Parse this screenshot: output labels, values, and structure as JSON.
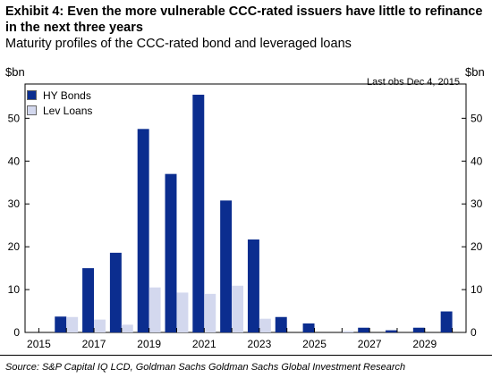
{
  "header": {
    "title": "Exhibit 4: Even the more vulnerable CCC-rated issuers have little to refinance in the next three years",
    "subtitle": "Maturity profiles of the CCC-rated bond and leveraged loans",
    "unit_left": "$bn",
    "unit_right": "$bn",
    "last_obs": "Last obs  Dec 4, 2015"
  },
  "footer": {
    "source": "Source: S&P Capital IQ LCD, Goldman Sachs Goldman Sachs Global Investment Research"
  },
  "colors": {
    "hy_bonds": "#0b2d8f",
    "lev_loans": "#d3d8ee"
  },
  "chart_data": {
    "type": "bar",
    "categories": [
      2015,
      2016,
      2017,
      2018,
      2019,
      2020,
      2021,
      2022,
      2023,
      2024,
      2025,
      2026,
      2027,
      2028,
      2029,
      2030
    ],
    "x_tick_labels": [
      "2015",
      "2017",
      "2019",
      "2021",
      "2023",
      "2025",
      "2027",
      "2029"
    ],
    "series": [
      {
        "name": "HY Bonds",
        "values": [
          0,
          3.7,
          15.0,
          18.6,
          47.5,
          37.0,
          55.5,
          30.8,
          21.7,
          3.6,
          2.1,
          0,
          1.1,
          0.5,
          1.1,
          4.9
        ]
      },
      {
        "name": "Lev Loans",
        "values": [
          0,
          3.6,
          3.0,
          1.8,
          10.5,
          9.3,
          9.0,
          10.9,
          3.2,
          0,
          0,
          0.3,
          0,
          0,
          0,
          0
        ]
      }
    ],
    "ylim": [
      0,
      58
    ],
    "y_ticks": [
      0,
      10,
      20,
      30,
      40,
      50
    ],
    "y_tick_labels": [
      "0",
      "10",
      "20",
      "30",
      "40",
      "50"
    ],
    "legend": "top-left",
    "grid": false
  }
}
